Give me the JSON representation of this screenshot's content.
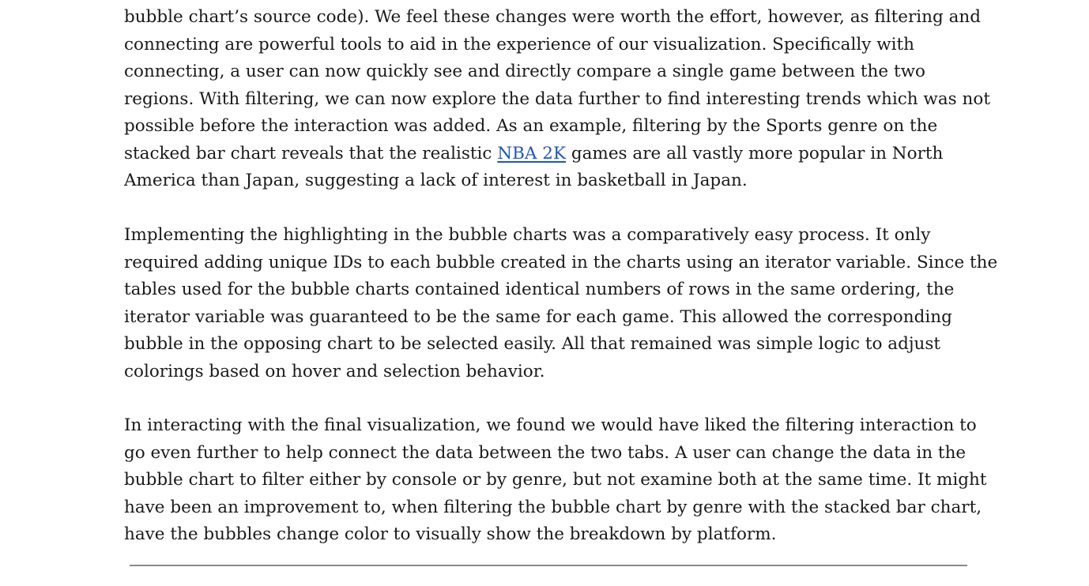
{
  "document": {
    "paragraphs": [
      {
        "lines": [
          "bubble chart’s source code). We feel these changes were worth the effort, however, as filtering and",
          "connecting are powerful tools to aid in the experience of our visualization. Specifically with",
          "connecting, a user can now quickly see and directly compare a single game between the two",
          "regions. With filtering, we can now explore the data further to find interesting trends which was not",
          "possible before the interaction was added. As an example, filtering by the Sports genre on the",
          {
            "before": "stacked bar chart reveals that the realistic ",
            "link": "NBA 2K",
            "after": " games are all vastly more popular in North"
          },
          "America than Japan, suggesting a lack of interest in basketball in Japan."
        ]
      },
      {
        "lines": [
          "Implementing the highlighting in the bubble charts was a comparatively easy process. It only",
          "required adding unique IDs to each bubble created in the charts using an iterator variable. Since the",
          "tables used for the bubble charts contained identical numbers of rows in the same ordering, the",
          "iterator variable was guaranteed to be the same for each game. This allowed the corresponding",
          "bubble in the opposing chart to be selected easily. All that remained was simple logic to adjust",
          "colorings based on hover and selection behavior."
        ]
      },
      {
        "lines": [
          "In interacting with the final visualization, we found we would have liked the filtering interaction to",
          "go even further to help connect the data between the two tabs. A user can change the data in the",
          "bubble chart to filter either by console or by genre, but not examine both at the same time. It might",
          "have been an improvement to, when filtering the bubble chart by genre with the stacked bar chart,",
          "have the bubbles change color to visually show the breakdown by platform."
        ]
      }
    ],
    "colors": {
      "text": "#1a1a1a",
      "link": "#1f56c4",
      "rule": "#8a8a8a",
      "background": "#ffffff"
    }
  }
}
